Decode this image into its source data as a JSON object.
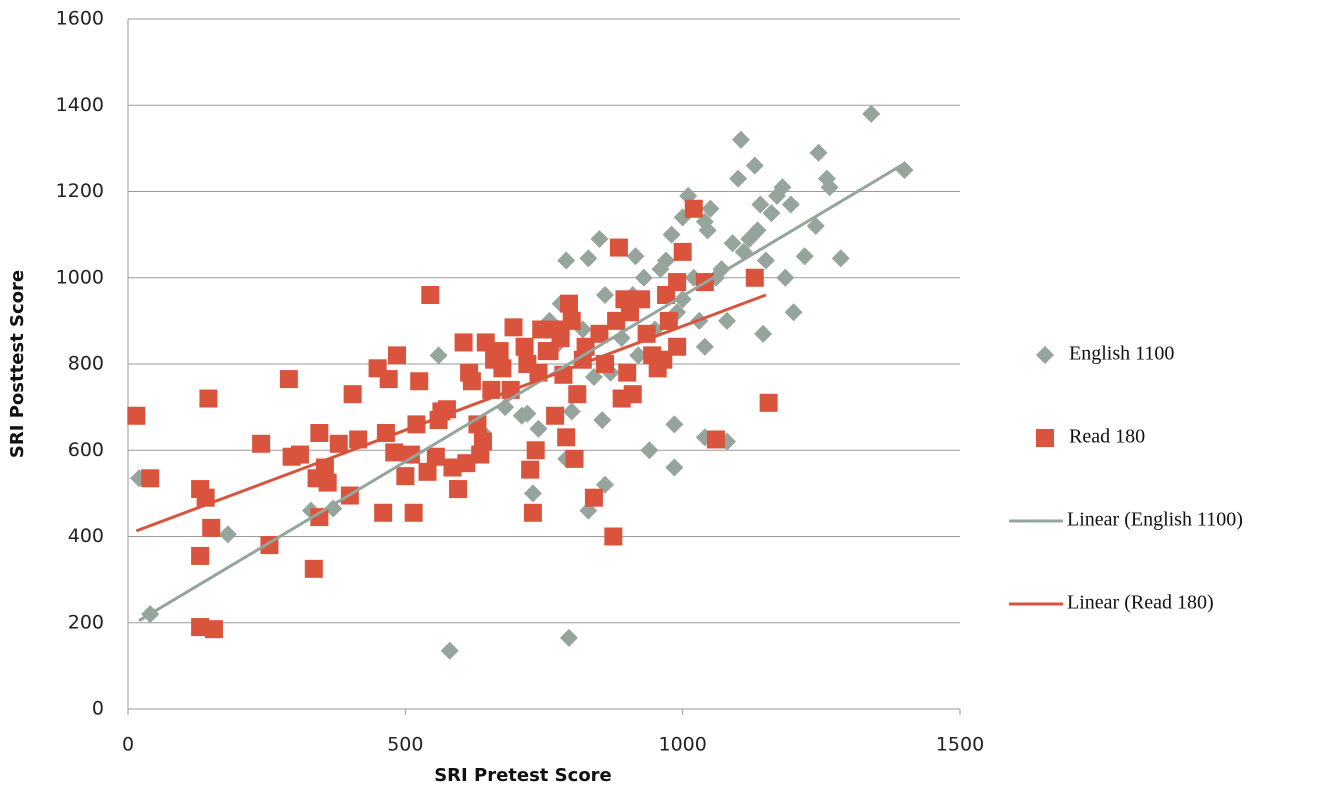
{
  "chart_data": {
    "type": "scatter",
    "x_label": "SRI Pretest Score",
    "y_label": "SRI Posttest Score",
    "xlim": [
      0,
      1500
    ],
    "xticks": [
      0,
      500,
      1000,
      1500
    ],
    "ylim": [
      0,
      1600
    ],
    "yticks": [
      0,
      200,
      400,
      600,
      800,
      1000,
      1200,
      1400,
      1600
    ],
    "grid": true,
    "legend": "right",
    "series": [
      {
        "name": "English 1100",
        "color": "#95a59c",
        "marker": "diamond",
        "x": [
          20,
          40,
          180,
          330,
          370,
          560,
          580,
          640,
          680,
          710,
          720,
          730,
          740,
          760,
          770,
          780,
          790,
          790,
          795,
          800,
          820,
          830,
          830,
          840,
          850,
          855,
          860,
          860,
          870,
          880,
          890,
          900,
          910,
          915,
          920,
          930,
          940,
          950,
          960,
          970,
          980,
          985,
          985,
          990,
          1000,
          1000,
          1010,
          1020,
          1030,
          1040,
          1040,
          1045,
          1050,
          1060,
          1070,
          1080,
          1090,
          1100,
          1105,
          1110,
          1120,
          1130,
          1135,
          1140,
          1145,
          1150,
          1160,
          1170,
          1180,
          1185,
          1195,
          1200,
          1220,
          1240,
          1245,
          1260,
          1265,
          1285,
          1340,
          1400,
          1080,
          1040
        ],
        "values": [
          535,
          220,
          405,
          460,
          465,
          820,
          135,
          640,
          700,
          680,
          685,
          500,
          650,
          900,
          840,
          940,
          1040,
          580,
          165,
          690,
          880,
          1045,
          460,
          770,
          1090,
          670,
          520,
          960,
          780,
          900,
          860,
          940,
          960,
          1050,
          820,
          1000,
          600,
          880,
          1020,
          1040,
          1100,
          660,
          560,
          920,
          950,
          1140,
          1190,
          1000,
          900,
          1130,
          840,
          1110,
          1160,
          1000,
          1020,
          900,
          1080,
          1230,
          1320,
          1060,
          1090,
          1260,
          1110,
          1170,
          870,
          1040,
          1150,
          1190,
          1210,
          1000,
          1170,
          920,
          1050,
          1120,
          1290,
          1230,
          1210,
          1045,
          1380,
          1250,
          620,
          630
        ]
      },
      {
        "name": "Read 180",
        "color": "#d9533d",
        "marker": "square",
        "x": [
          15,
          40,
          130,
          130,
          130,
          140,
          145,
          150,
          155,
          240,
          255,
          290,
          295,
          310,
          335,
          340,
          345,
          345,
          355,
          360,
          380,
          400,
          405,
          415,
          450,
          460,
          465,
          470,
          480,
          485,
          500,
          510,
          515,
          520,
          525,
          540,
          545,
          555,
          560,
          565,
          575,
          585,
          595,
          605,
          610,
          615,
          620,
          630,
          635,
          640,
          645,
          655,
          660,
          670,
          675,
          690,
          695,
          715,
          720,
          725,
          730,
          735,
          740,
          745,
          755,
          760,
          770,
          775,
          780,
          785,
          790,
          795,
          800,
          805,
          810,
          820,
          825,
          840,
          850,
          860,
          875,
          880,
          885,
          890,
          895,
          900,
          905,
          910,
          925,
          935,
          945,
          955,
          965,
          970,
          975,
          990,
          990,
          1000,
          1020,
          1040,
          1060,
          1130,
          1155
        ],
        "values": [
          680,
          535,
          190,
          355,
          510,
          490,
          720,
          420,
          185,
          615,
          380,
          765,
          585,
          590,
          325,
          535,
          640,
          445,
          560,
          525,
          615,
          495,
          730,
          625,
          790,
          455,
          640,
          765,
          595,
          820,
          540,
          590,
          455,
          660,
          760,
          550,
          960,
          585,
          670,
          690,
          695,
          560,
          510,
          850,
          570,
          780,
          760,
          660,
          590,
          620,
          850,
          740,
          810,
          830,
          790,
          740,
          885,
          840,
          800,
          555,
          455,
          600,
          780,
          880,
          830,
          830,
          680,
          880,
          860,
          775,
          630,
          940,
          900,
          580,
          730,
          810,
          840,
          490,
          870,
          800,
          400,
          900,
          1070,
          720,
          950,
          780,
          920,
          730,
          950,
          870,
          820,
          790,
          810,
          960,
          900,
          990,
          840,
          1060,
          1160,
          990,
          625,
          1000,
          710
        ]
      },
      {
        "name": "Linear (English 1100)",
        "color": "#95a59c",
        "marker": "line",
        "x": [
          20,
          1400
        ],
        "values": [
          205,
          1265
        ]
      },
      {
        "name": "Linear (Read 180)",
        "color": "#d9533d",
        "marker": "line",
        "x": [
          15,
          1150
        ],
        "values": [
          413,
          960
        ]
      }
    ]
  }
}
